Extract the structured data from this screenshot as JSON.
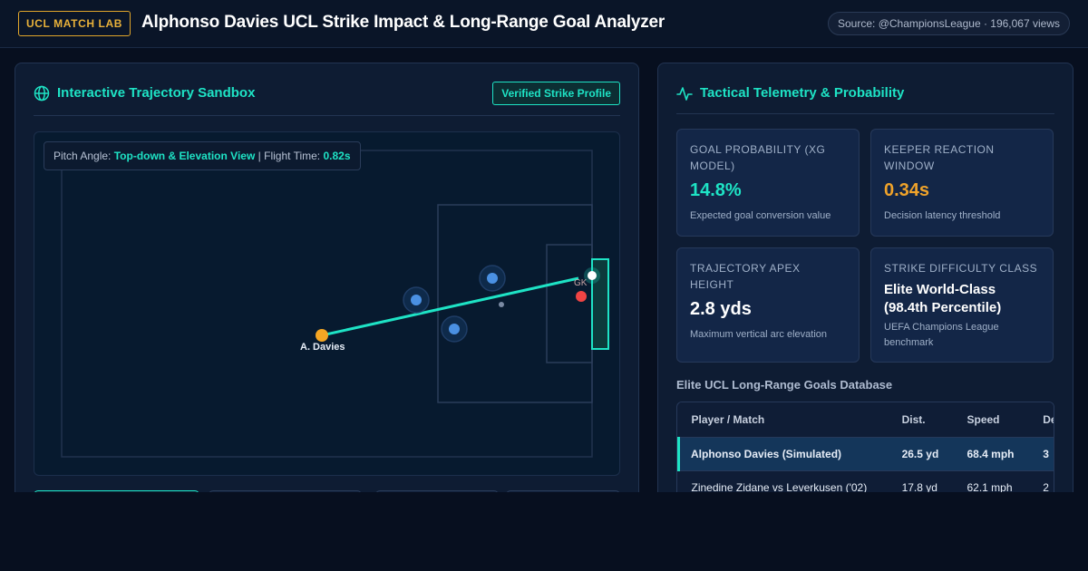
{
  "header": {
    "brand": "UCL MATCH LAB",
    "title": "Alphonso Davies UCL Strike Impact & Long-Range Goal Analyzer",
    "source": "Source: @ChampionsLeague · 196,067 views"
  },
  "colors": {
    "accent": "#1ee3c5",
    "brand": "#e8b13a",
    "warning": "#f0a32a",
    "striker": "#f5a623",
    "defender": "#4a90e2",
    "goalkeeper": "#ef4444"
  },
  "left_panel": {
    "title": "Interactive Trajectory Sandbox",
    "icon": "globe-icon",
    "badge": "Verified Strike Profile",
    "pitch_info": {
      "label_angle": "Pitch Angle:",
      "angle_value": "Top-down & Elevation View",
      "separator": "|",
      "label_time": "Flight Time:",
      "time_value": "0.82s"
    },
    "striker_label": "A. Davies",
    "gk_label": "GK"
  },
  "right_panel": {
    "title": "Tactical Telemetry & Probability",
    "icon": "activity-icon",
    "metrics": [
      {
        "label": "Goal Probability (xG Model)",
        "value": "14.8%",
        "sub": "Expected goal conversion value"
      },
      {
        "label": "Keeper Reaction Window",
        "value": "0.34s",
        "sub": "Decision latency threshold"
      },
      {
        "label": "Trajectory Apex Height",
        "value": "2.8 yds",
        "sub": "Maximum vertical arc elevation"
      },
      {
        "label": "Strike Difficulty Class",
        "value": "Elite World-Class (98.4th Percentile)",
        "sub": "UEFA Champions League benchmark"
      }
    ],
    "db_title": "Elite UCL Long-Range Goals Database",
    "table": {
      "headers": [
        "Player / Match",
        "Dist.",
        "Speed",
        "Defenders"
      ],
      "rows": [
        [
          "Alphonso Davies (Simulated)",
          "26.5 yd",
          "68.4 mph",
          "3"
        ],
        [
          "Zinedine Zidane vs Leverkusen ('02)",
          "17.8 yd",
          "62.1 mph",
          "2"
        ]
      ]
    }
  }
}
